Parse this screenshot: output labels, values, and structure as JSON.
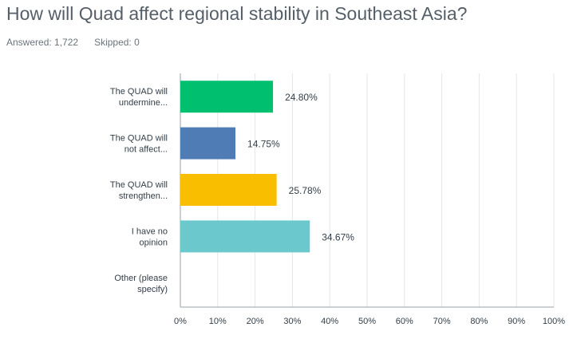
{
  "question": {
    "title": "How will Quad affect regional stability in Southeast Asia?",
    "answered_label": "Answered: 1,722",
    "skipped_label": "Skipped: 0"
  },
  "colors": {
    "grid": "#e3e5e8",
    "axis": "#9aa1a7",
    "text": "#333e48"
  },
  "chart_data": {
    "type": "bar",
    "orientation": "horizontal",
    "categories": [
      [
        "The QUAD will",
        "undermine..."
      ],
      [
        "The QUAD will",
        "not affect..."
      ],
      [
        "The QUAD will",
        "strengthen..."
      ],
      [
        "I have no",
        "opinion"
      ],
      [
        "Other (please",
        "specify)"
      ]
    ],
    "values": [
      24.8,
      14.75,
      25.78,
      34.67,
      0
    ],
    "value_labels": [
      "24.80%",
      "14.75%",
      "25.78%",
      "34.67%",
      ""
    ],
    "bar_colors": [
      "#00bf6f",
      "#507cb6",
      "#f9be00",
      "#6bc8cd",
      "#ff8b4f"
    ],
    "xlim": [
      0,
      100
    ],
    "xticks": [
      0,
      10,
      20,
      30,
      40,
      50,
      60,
      70,
      80,
      90,
      100
    ],
    "xtick_labels": [
      "0%",
      "10%",
      "20%",
      "30%",
      "40%",
      "50%",
      "60%",
      "70%",
      "80%",
      "90%",
      "100%"
    ],
    "grid": true
  }
}
